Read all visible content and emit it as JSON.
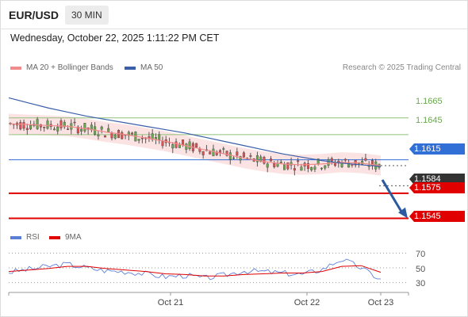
{
  "header": {
    "pair": "EUR/USD",
    "timeframe": "30 MIN"
  },
  "datetime": "Wednesday, October 22, 2025 1:11:22 PM CET",
  "legend": {
    "ma20": {
      "label": "MA 20 + Bollinger Bands",
      "color": "#f28b8b"
    },
    "ma50": {
      "label": "MA 50",
      "color": "#3a5fa8"
    }
  },
  "credit": "Research © 2025 Trading Central",
  "rsi_legend": {
    "rsi": {
      "label": "RSI",
      "color": "#5b7fd6"
    },
    "ma9": {
      "label": "9MA",
      "color": "#e00000"
    }
  },
  "levels": {
    "r2": {
      "label": "1.1665",
      "color": "#6aa84f"
    },
    "r1": {
      "label": "1.1645",
      "color": "#6aa84f"
    },
    "pivot": {
      "label": "1.1615",
      "color": "#2f6fd6"
    },
    "last": {
      "label": "1.1584",
      "color": "#333333"
    },
    "s1": {
      "label": "1.1575",
      "color": "#e00000"
    },
    "s2": {
      "label": "1.1545",
      "color": "#e00000"
    }
  },
  "rsi_ticks": [
    "70",
    "50",
    "30"
  ],
  "x_labels": [
    "Oct 21",
    "Oct 22",
    "Oct 23"
  ],
  "chart_data": [
    {
      "type": "line",
      "series": [
        {
          "name": "MA 20 + Bollinger Bands",
          "values": [
            1.1658,
            1.1657,
            1.1656,
            1.1655,
            1.1652,
            1.1648,
            1.1645,
            1.1641,
            1.1637,
            1.1632,
            1.1627,
            1.1622,
            1.1617,
            1.1613,
            1.161,
            1.1609,
            1.161,
            1.1612,
            1.1611,
            1.1608
          ]
        },
        {
          "name": "MA 50",
          "values": [
            1.1689,
            1.1683,
            1.1677,
            1.1672,
            1.1667,
            1.1663,
            1.1659,
            1.1655,
            1.1651,
            1.1647,
            1.1642,
            1.1637,
            1.1632,
            1.1627,
            1.1622,
            1.1618,
            1.1614,
            1.1611,
            1.1609,
            1.1607
          ]
        }
      ],
      "levels": [
        1.1665,
        1.1645,
        1.1615,
        1.1575,
        1.1545
      ],
      "last_price": 1.1584,
      "x_ticks": [
        "Oct 21",
        "Oct 22",
        "Oct 23"
      ],
      "ylim": [
        1.1536,
        1.1715
      ]
    },
    {
      "type": "line",
      "series": [
        {
          "name": "RSI",
          "values": [
            44,
            48,
            52,
            55,
            50,
            46,
            45,
            42,
            38,
            40,
            36,
            40,
            46,
            45,
            43,
            41,
            48,
            62,
            50,
            34
          ]
        },
        {
          "name": "9MA",
          "values": [
            45,
            47,
            49,
            52,
            52,
            49,
            47,
            45,
            42,
            41,
            39,
            39,
            41,
            42,
            43,
            43,
            45,
            52,
            53,
            44
          ]
        }
      ],
      "y_ticks": [
        70,
        50,
        30
      ],
      "ylim": [
        20,
        80
      ]
    }
  ]
}
